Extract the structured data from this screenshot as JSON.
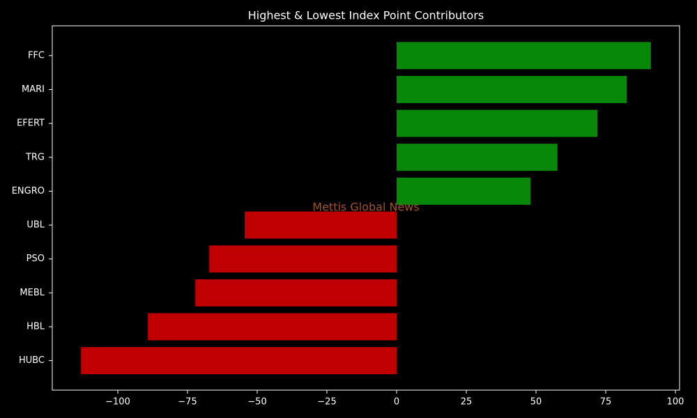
{
  "chart_data": {
    "type": "barh",
    "title": "Highest & Lowest Index Point Contributors",
    "annotation": "Mettis Global News",
    "categories": [
      "FFC",
      "MARI",
      "EFERT",
      "TRG",
      "ENGRO",
      "UBL",
      "PSO",
      "MEBL",
      "HBL",
      "HUBC"
    ],
    "values": [
      91.2,
      82.5,
      72,
      57.7,
      48,
      -54.5,
      -67.2,
      -72.2,
      -89.2,
      -113.2
    ],
    "colors": [
      "#088808",
      "#088808",
      "#088808",
      "#088808",
      "#088808",
      "#c00000",
      "#c00000",
      "#c00000",
      "#c00000",
      "#c00000"
    ],
    "xlim": [
      -123.5,
      101.5
    ],
    "xticks": [
      {
        "value": -100,
        "label": "−100"
      },
      {
        "value": -75,
        "label": "−75"
      },
      {
        "value": -50,
        "label": "−50"
      },
      {
        "value": -25,
        "label": "−25"
      },
      0,
      25,
      50,
      75,
      100
    ],
    "grid": false
  }
}
